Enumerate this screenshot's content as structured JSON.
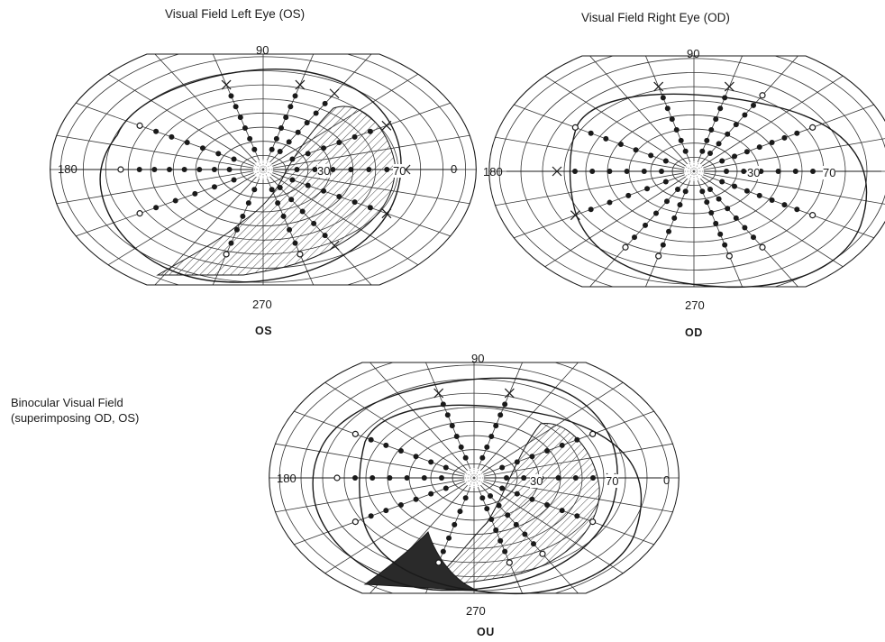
{
  "left_title": "Visual Field Left Eye (OS)",
  "right_title": "Visual Field Right Eye (OD)",
  "binocular_title_line1": "Binocular Visual Field",
  "binocular_title_line2": "(superimposing OD, OS)",
  "axis_labels": {
    "top": "90",
    "left": "180",
    "right": "0",
    "bottom": "270",
    "inner_ring": "30",
    "outer_ring": "70"
  },
  "eye_labels": {
    "left": "OS",
    "right": "OD",
    "binocular": "OU"
  },
  "colors": {
    "ink": "#1a1a1a",
    "grid": "#333333",
    "background": "#ffffff",
    "scotoma_dark": "#2a2a2a"
  }
}
